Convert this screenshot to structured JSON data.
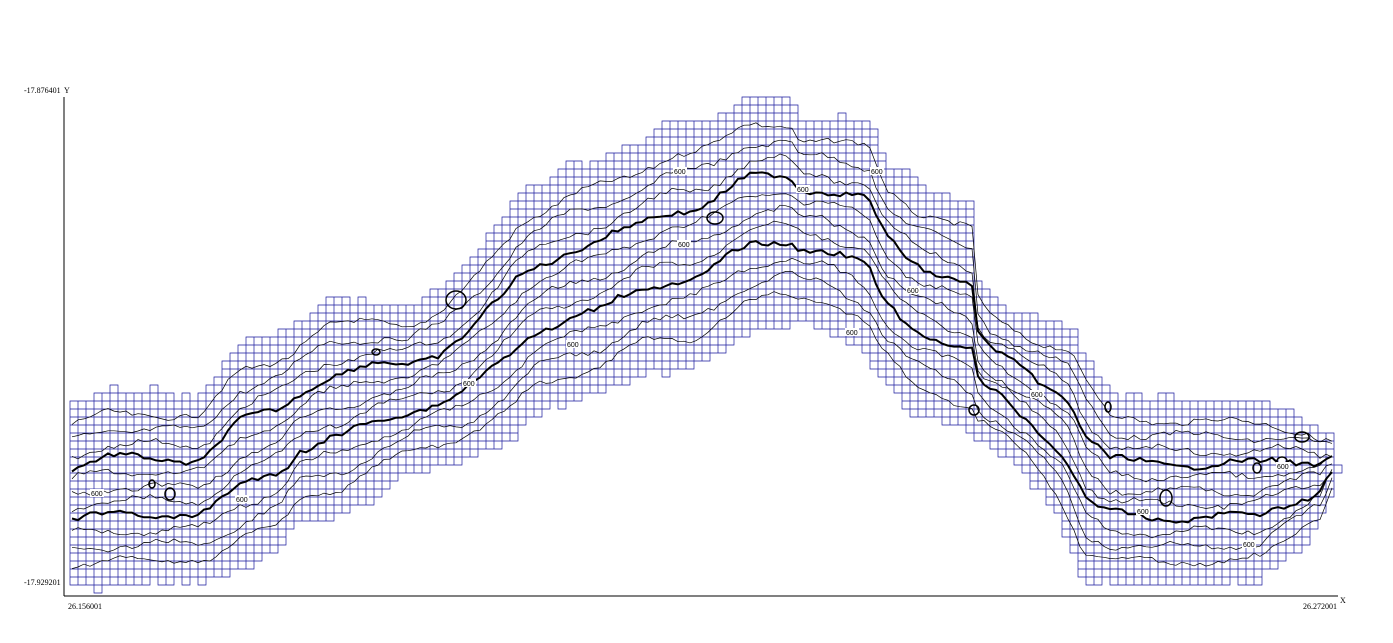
{
  "axes": {
    "x_min_label": "26.156001",
    "x_max_label": "26.272001",
    "x_name": "X",
    "y_max_label": "-17.876401",
    "y_min_label": "-17.929201",
    "y_name": "Y"
  },
  "contour_labels": [
    "600",
    "600",
    "600",
    "600",
    "600",
    "600",
    "600",
    "600",
    "600",
    "600",
    "600",
    "600",
    "600",
    "600"
  ],
  "colors": {
    "grid": "#1a1a9c",
    "contour": "#000000",
    "axis": "#000000",
    "background": "#ffffff"
  }
}
